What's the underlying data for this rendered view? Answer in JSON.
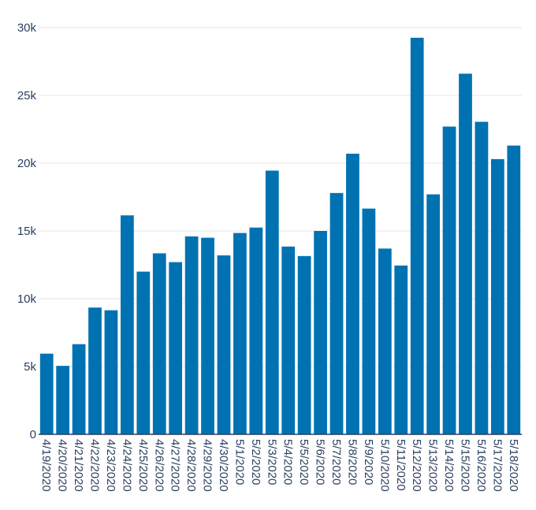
{
  "chart_data": {
    "type": "bar",
    "title": "",
    "xlabel": "",
    "ylabel": "",
    "color": "#0072b2",
    "ylim": [
      0,
      30000
    ],
    "yticks": [
      0,
      5000,
      10000,
      15000,
      20000,
      25000,
      30000
    ],
    "ytick_labels": [
      "0",
      "5k",
      "10k",
      "15k",
      "20k",
      "25k",
      "30k"
    ],
    "grid": true,
    "categories": [
      "4/19/2020",
      "4/20/2020",
      "4/21/2020",
      "4/22/2020",
      "4/23/2020",
      "4/24/2020",
      "4/25/2020",
      "4/26/2020",
      "4/27/2020",
      "4/28/2020",
      "4/29/2020",
      "4/30/2020",
      "5/1/2020",
      "5/2/2020",
      "5/3/2020",
      "5/4/2020",
      "5/5/2020",
      "5/6/2020",
      "5/7/2020",
      "5/8/2020",
      "5/9/2020",
      "5/10/2020",
      "5/11/2020",
      "5/12/2020",
      "5/13/2020",
      "5/14/2020",
      "5/15/2020",
      "5/16/2020",
      "5/17/2020",
      "5/18/2020"
    ],
    "values": [
      5950,
      5050,
      6650,
      9350,
      9150,
      16150,
      12000,
      13350,
      12700,
      14600,
      14500,
      13200,
      14850,
      15250,
      19450,
      13850,
      13150,
      15000,
      17800,
      20700,
      16650,
      13700,
      12450,
      29250,
      17700,
      22700,
      26600,
      23050,
      20300,
      21300
    ]
  }
}
